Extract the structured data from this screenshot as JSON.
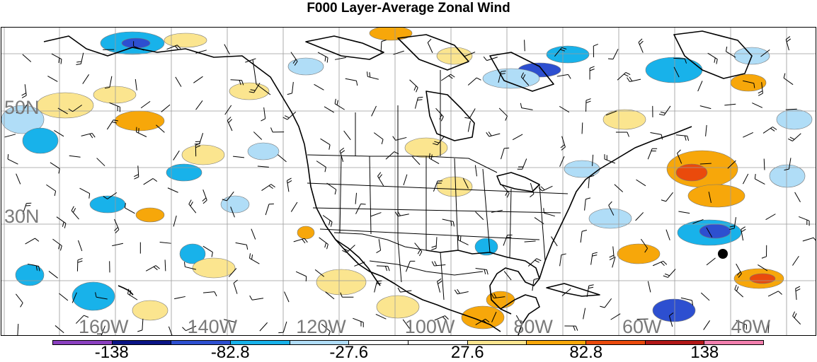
{
  "title": "F000 Layer-Average Zonal Wind",
  "lat_labels": [
    {
      "text": "50N",
      "lat": 50
    },
    {
      "text": "30N",
      "lat": 30
    }
  ],
  "lon_labels": [
    {
      "text": "160W",
      "lon": -160
    },
    {
      "text": "140W",
      "lon": -140
    },
    {
      "text": "120W",
      "lon": -120
    },
    {
      "text": "100W",
      "lon": -100
    },
    {
      "text": "80W",
      "lon": -80
    },
    {
      "text": "60W",
      "lon": -60
    },
    {
      "text": "40W",
      "lon": -40
    }
  ],
  "colorbar": {
    "colors": [
      "#8a3fbf",
      "#0a1486",
      "#2d4fd0",
      "#18b2ea",
      "#b0ddf7",
      "#ffffff",
      "#ffffff",
      "#fbe58f",
      "#f7a70a",
      "#ea4a0c",
      "#b21717",
      "#f27fae"
    ],
    "labels": [
      "-138",
      "-82.8",
      "-27.6",
      "27.6",
      "82.8",
      "138"
    ]
  },
  "colors": {
    "light_blue": "#b0ddf7",
    "mid_blue": "#18b2ea",
    "deep_blue": "#2d4fd0",
    "navy": "#0a1486",
    "light_yellow": "#fbe58f",
    "orange": "#f7a70a",
    "red_orange": "#ea4a0c",
    "graticule": "#9a9a9a",
    "label_gray": "#7a7a7a"
  }
}
